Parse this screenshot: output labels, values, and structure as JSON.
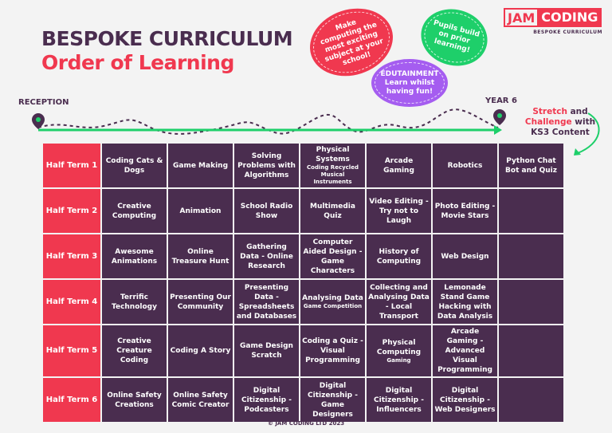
{
  "header": {
    "title": "BESPOKE CURRICULUM",
    "subtitle": "Order of Learning"
  },
  "logo": {
    "jam": "JAM",
    "coding": "CODING",
    "tagline": "BESPOKE CURRICULUM"
  },
  "bubbles": {
    "red": "Make computing the most exciting subject at your school!",
    "purple_title": "EDUTAINMENT",
    "purple": "Learn whilst having fun!",
    "green": "Pupils build on prior learning!"
  },
  "timeline": {
    "start": "RECEPTION",
    "end": "YEAR 6"
  },
  "stretch": {
    "w1": "Stretch",
    "w2": " and",
    "w3": "Challenge",
    "w4": " with",
    "w5": "KS3 Content"
  },
  "colors": {
    "brand_red": "#f0384f",
    "cell_purple": "#4a2d4f",
    "green": "#1ecf6a",
    "bubble_purple": "#a55df0"
  },
  "rows": [
    {
      "label": "Half Term 1",
      "cells": [
        {
          "t": "Coding Cats & Dogs"
        },
        {
          "t": "Game Making"
        },
        {
          "t": "Solving Problems with Algorithms"
        },
        {
          "t": "Physical Systems",
          "s": "Coding Recycled Musical Instruments"
        },
        {
          "t": "Arcade Gaming"
        },
        {
          "t": "Robotics"
        },
        {
          "t": "Python Chat Bot and Quiz"
        }
      ]
    },
    {
      "label": "Half Term 2",
      "cells": [
        {
          "t": "Creative Computing"
        },
        {
          "t": "Animation"
        },
        {
          "t": "School Radio Show"
        },
        {
          "t": "Multimedia Quiz"
        },
        {
          "t": "Video Editing - Try not to Laugh"
        },
        {
          "t": "Photo Editing - Movie Stars"
        },
        {
          "t": ""
        }
      ]
    },
    {
      "label": "Half Term 3",
      "cells": [
        {
          "t": "Awesome Animations"
        },
        {
          "t": "Online Treasure Hunt"
        },
        {
          "t": "Gathering Data - Online Research"
        },
        {
          "t": "Computer Aided Design - Game Characters"
        },
        {
          "t": "History of Computing"
        },
        {
          "t": "Web Design"
        },
        {
          "t": ""
        }
      ]
    },
    {
      "label": "Half Term 4",
      "cells": [
        {
          "t": "Terrific Technology"
        },
        {
          "t": "Presenting Our Community"
        },
        {
          "t": "Presenting Data - Spreadsheets and Databases"
        },
        {
          "t": "Analysing Data",
          "s": "Game Competition"
        },
        {
          "t": "Collecting and Analysing Data - Local Transport"
        },
        {
          "t": "Lemonade Stand Game Hacking with Data Analysis"
        },
        {
          "t": ""
        }
      ]
    },
    {
      "label": "Half Term 5",
      "cells": [
        {
          "t": "Creative Creature Coding"
        },
        {
          "t": "Coding A Story"
        },
        {
          "t": "Game Design Scratch"
        },
        {
          "t": "Coding a Quiz - Visual Programming"
        },
        {
          "t": "Physical Computing",
          "s": "Gaming"
        },
        {
          "t": "Arcade Gaming - Advanced Visual Programming"
        },
        {
          "t": ""
        }
      ]
    },
    {
      "label": "Half Term 6",
      "cells": [
        {
          "t": "Online Safety Creations"
        },
        {
          "t": "Online Safety Comic Creator"
        },
        {
          "t": "Digital Citizenship - Podcasters"
        },
        {
          "t": "Digital Citizenship - Game Designers"
        },
        {
          "t": "Digital Citizenship - Influencers"
        },
        {
          "t": "Digital Citizenship - Web Designers"
        },
        {
          "t": ""
        }
      ]
    }
  ],
  "footer": "© JAM CODING LTD 2023"
}
